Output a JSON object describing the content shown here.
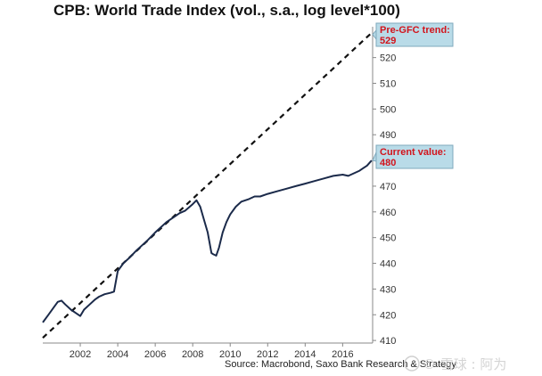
{
  "chart_data": {
    "type": "line",
    "title": "CPB: World Trade Index (vol., s.a., log level*100)",
    "source": "Source: Macrobond, Saxo Bank Research & Strategy",
    "xlabel": "",
    "ylabel": "",
    "xlim": [
      2000.0,
      2017.6
    ],
    "ylim": [
      409,
      532
    ],
    "x_ticks": [
      "2002",
      "2004",
      "2006",
      "2008",
      "2010",
      "2012",
      "2014",
      "2016"
    ],
    "y_ticks": [
      "410",
      "420",
      "430",
      "440",
      "450",
      "460",
      "470",
      "480",
      "490",
      "500",
      "510",
      "520"
    ],
    "series": [
      {
        "name": "World Trade Index",
        "style": "solid",
        "color": "#1b2a4a",
        "x": [
          2000.0,
          2000.3,
          2000.6,
          2000.8,
          2001.0,
          2001.2,
          2001.5,
          2001.8,
          2002.0,
          2002.2,
          2002.5,
          2002.8,
          2003.0,
          2003.3,
          2003.6,
          2003.8,
          2004.0,
          2004.3,
          2004.6,
          2005.0,
          2005.3,
          2005.6,
          2006.0,
          2006.3,
          2006.6,
          2007.0,
          2007.3,
          2007.6,
          2008.0,
          2008.2,
          2008.4,
          2008.6,
          2008.8,
          2009.0,
          2009.1,
          2009.25,
          2009.4,
          2009.6,
          2009.8,
          2010.0,
          2010.3,
          2010.6,
          2011.0,
          2011.3,
          2011.6,
          2012.0,
          2012.5,
          2013.0,
          2013.5,
          2014.0,
          2014.5,
          2015.0,
          2015.5,
          2016.0,
          2016.3,
          2016.6,
          2016.9,
          2017.1,
          2017.3,
          2017.55
        ],
        "y": [
          417,
          420,
          423,
          425,
          425.5,
          424,
          422,
          420.5,
          419.5,
          422,
          424,
          426,
          427,
          428,
          428.5,
          429,
          437,
          440,
          442,
          445,
          447,
          449,
          452,
          454,
          456,
          458,
          459.5,
          460.5,
          463,
          464.5,
          462,
          457,
          452,
          444,
          443.5,
          443,
          446,
          452,
          456,
          459,
          462,
          464,
          465,
          466,
          466,
          467,
          468,
          469,
          470,
          471,
          472,
          473,
          474,
          474.5,
          474,
          475,
          476,
          477,
          478,
          480
        ]
      },
      {
        "name": "Pre-GFC trend",
        "style": "dashed",
        "color": "#111111",
        "x": [
          2000.0,
          2017.6
        ],
        "y": [
          411,
          530
        ]
      }
    ],
    "annotations": [
      {
        "label": "Pre-GFC trend:",
        "value": "529",
        "anchor_value": 529
      },
      {
        "label": "Current value:",
        "value": "480",
        "anchor_value": 480
      }
    ]
  },
  "watermark": "© 雪球 : 阿为",
  "colors": {
    "line": "#1b2a4a",
    "callout_bg": "#b9dbe8",
    "callout_border": "#7fa9bd",
    "callout_text": "#d2141c"
  }
}
